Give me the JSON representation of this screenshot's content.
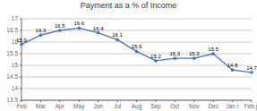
{
  "chart_data": {
    "type": "line",
    "title": "Payment as a % of Income",
    "categories": [
      "Feb",
      "Mar",
      "Apr",
      "May",
      "Jun",
      "Jul",
      "Aug",
      "Sep",
      "Oct",
      "Nov",
      "Dec",
      "Jan r",
      "Feb p"
    ],
    "values": [
      15.9,
      16.3,
      16.5,
      16.6,
      16.4,
      16.1,
      15.6,
      15.2,
      15.3,
      15.3,
      15.5,
      14.8,
      14.7
    ],
    "color": "#4472C4",
    "marker": "circle",
    "ylim": [
      13.5,
      17
    ],
    "yticks": [
      13.5,
      14,
      14.5,
      15,
      15.5,
      16,
      16.5,
      17
    ],
    "grid": true,
    "data_labels": true
  }
}
